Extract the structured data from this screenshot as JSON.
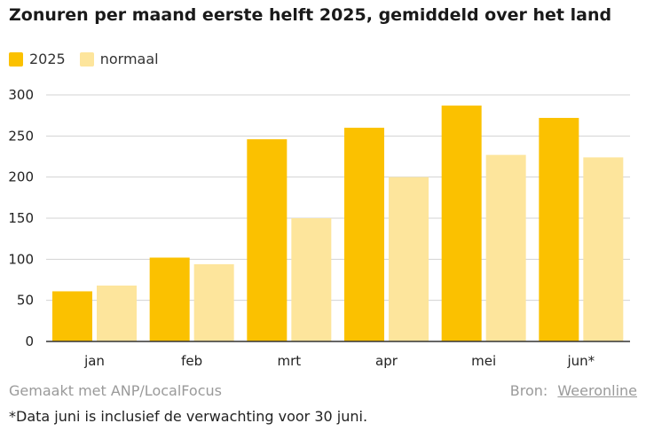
{
  "title": "Zonuren per maand eerste helft 2025, gemiddeld over het land",
  "legend": [
    {
      "label": "2025",
      "color": "#fbc100"
    },
    {
      "label": "normaal",
      "color": "#fde59c"
    }
  ],
  "footer": {
    "credit": "Gemaakt met ANP/LocalFocus",
    "source_label": "Bron:",
    "source_name": "Weeronline"
  },
  "note": "*Data juni is inclusief de verwachting voor 30 juni.",
  "colors": {
    "series_2025": "#fbc100",
    "series_normaal": "#fde59c",
    "grid": "#d3d3d3",
    "axis": "#333333"
  },
  "chart_data": {
    "type": "bar",
    "categories": [
      "jan",
      "feb",
      "mrt",
      "apr",
      "mei",
      "jun*"
    ],
    "series": [
      {
        "name": "2025",
        "values": [
          61,
          102,
          246,
          260,
          287,
          272
        ]
      },
      {
        "name": "normaal",
        "values": [
          68,
          94,
          150,
          200,
          227,
          224
        ]
      }
    ],
    "ylim": [
      0,
      300
    ],
    "yticks": [
      0,
      50,
      100,
      150,
      200,
      250,
      300
    ],
    "grid": true,
    "legend_position": "top-left"
  }
}
